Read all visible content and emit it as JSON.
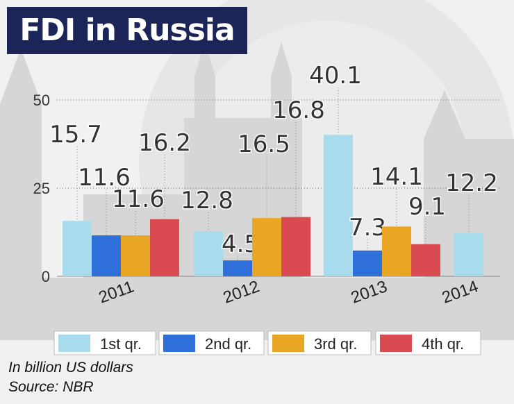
{
  "header": {
    "title": "FDI in Russia"
  },
  "footer": {
    "note": "In billion US dollars",
    "source": "Source: NBR"
  },
  "chart_data": {
    "type": "bar",
    "title": "FDI in Russia",
    "ylim": [
      0,
      50
    ],
    "yticks": [
      "0",
      "25",
      "50"
    ],
    "categories": [
      "2011",
      "2012",
      "2013",
      "2014"
    ],
    "series": [
      {
        "name": "1st qr.",
        "color": "#a8dcec",
        "values": [
          15.7,
          12.8,
          40.1,
          12.2
        ]
      },
      {
        "name": "2nd qr.",
        "color": "#2f6fd9",
        "values": [
          11.6,
          4.5,
          7.3,
          null
        ]
      },
      {
        "name": "3rd qr.",
        "color": "#e9a625",
        "values": [
          11.6,
          16.5,
          14.1,
          null
        ]
      },
      {
        "name": "4th qr.",
        "color": "#d94b50",
        "values": [
          16.2,
          16.8,
          9.1,
          null
        ]
      }
    ],
    "data_labels": [
      [
        "15.7",
        "11.6",
        "11.6",
        "16.2"
      ],
      [
        "12.8",
        "4.5",
        "16.5",
        "16.8"
      ],
      [
        "40.1",
        "7.3",
        "14.1",
        "9.1"
      ],
      [
        "12.2",
        null,
        null,
        null
      ]
    ],
    "grid": true,
    "legend": "bottom"
  }
}
